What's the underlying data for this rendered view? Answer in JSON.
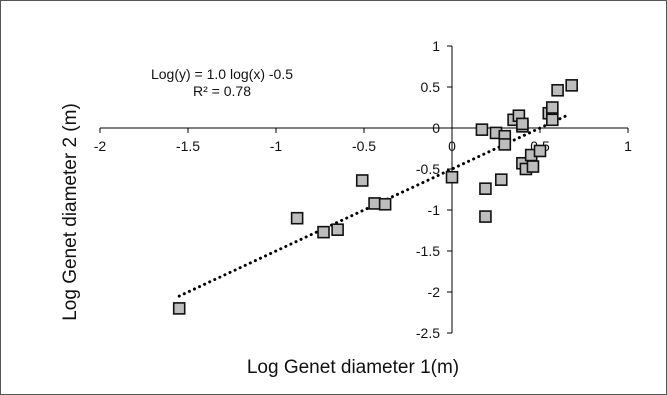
{
  "chart_data": {
    "type": "scatter",
    "title": "",
    "xlabel": "Log Genet diameter 1(m)",
    "ylabel": "Log Genet diameter 2 (m)",
    "xlim": [
      -2,
      1
    ],
    "ylim": [
      -2.5,
      1
    ],
    "xticks": [
      "-2",
      "-1.5",
      "-1",
      "-0.5",
      "0",
      "0.5",
      "1"
    ],
    "yticks": [
      "1",
      "0.5",
      "0",
      "-0.5",
      "-1",
      "-1.5",
      "-2",
      "-2.5"
    ],
    "grid": false,
    "legend": "none",
    "marker": "square",
    "colors": {
      "marker_fill": "#bdbdbd",
      "marker_edge": "#111111",
      "axes": "#000000",
      "trendline": "#000000"
    },
    "points": [
      {
        "x": -1.55,
        "y": -2.2
      },
      {
        "x": -0.88,
        "y": -1.1
      },
      {
        "x": -0.73,
        "y": -1.27
      },
      {
        "x": -0.65,
        "y": -1.24
      },
      {
        "x": -0.51,
        "y": -0.64
      },
      {
        "x": -0.44,
        "y": -0.92
      },
      {
        "x": -0.38,
        "y": -0.93
      },
      {
        "x": 0.0,
        "y": -0.6
      },
      {
        "x": 0.17,
        "y": -0.02
      },
      {
        "x": 0.25,
        "y": -0.06
      },
      {
        "x": 0.3,
        "y": -0.1
      },
      {
        "x": 0.3,
        "y": -0.2
      },
      {
        "x": 0.35,
        "y": 0.1
      },
      {
        "x": 0.38,
        "y": 0.15
      },
      {
        "x": 0.4,
        "y": 0.02
      },
      {
        "x": 0.4,
        "y": 0.05
      },
      {
        "x": 0.4,
        "y": -0.43
      },
      {
        "x": 0.42,
        "y": -0.5
      },
      {
        "x": 0.45,
        "y": -0.33
      },
      {
        "x": 0.46,
        "y": -0.47
      },
      {
        "x": 0.5,
        "y": -0.28
      },
      {
        "x": 0.55,
        "y": 0.18
      },
      {
        "x": 0.57,
        "y": 0.25
      },
      {
        "x": 0.57,
        "y": 0.1
      },
      {
        "x": 0.6,
        "y": 0.46
      },
      {
        "x": 0.68,
        "y": 0.52
      },
      {
        "x": 0.19,
        "y": -0.74
      },
      {
        "x": 0.19,
        "y": -1.08
      },
      {
        "x": 0.28,
        "y": -0.63
      }
    ],
    "trendline": {
      "style": "dotted",
      "x": [
        -1.55,
        0.65
      ],
      "y": [
        -2.05,
        0.15
      ]
    },
    "annotations": [
      {
        "text": "Log(y) = 1.0 log(x)  -0.5"
      },
      {
        "text": "R² = 0.78"
      }
    ]
  }
}
